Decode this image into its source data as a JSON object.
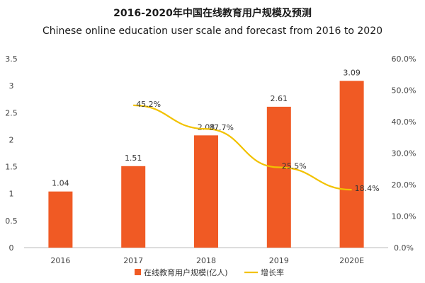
{
  "title": "2016-2020年中国在线教育用户规模及预测",
  "subtitle": "Chinese online education user scale and forecast from 2016 to 2020",
  "colors": {
    "bar": "#f05a24",
    "line": "#f2c200",
    "axis": "#bbbbbb"
  },
  "chart_data": {
    "type": "bar",
    "categories": [
      "2016",
      "2017",
      "2018",
      "2019",
      "2020E"
    ],
    "series": [
      {
        "name": "在线教育用户规模(亿人)",
        "type": "bar",
        "axis": "left",
        "values": [
          1.04,
          1.51,
          2.08,
          2.61,
          3.09
        ],
        "labels": [
          "1.04",
          "1.51",
          "2.08",
          "2.61",
          "3.09"
        ]
      },
      {
        "name": "增长率",
        "type": "line",
        "axis": "right",
        "values": [
          null,
          45.2,
          37.7,
          25.5,
          18.4
        ],
        "labels": [
          "",
          "45.2%",
          "37.7%",
          "25.5%",
          "18.4%"
        ]
      }
    ],
    "y_left": {
      "min": 0,
      "max": 3.5,
      "ticks": [
        "0",
        "0.5",
        "1",
        "1.5",
        "2",
        "2.5",
        "3",
        "3.5"
      ]
    },
    "y_right": {
      "min": 0,
      "max": 60,
      "ticks": [
        "0.0%",
        "10.0%",
        "20.0%",
        "30.0%",
        "40.0%",
        "50.0%",
        "60.0%"
      ]
    },
    "legend_position": "bottom"
  }
}
